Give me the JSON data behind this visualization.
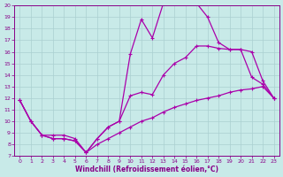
{
  "xlabel": "Windchill (Refroidissement éolien,°C)",
  "bg_color": "#c8eae8",
  "line_color": "#aa00aa",
  "ylim": [
    7,
    20
  ],
  "xlim": [
    -0.5,
    23.5
  ],
  "yticks": [
    7,
    8,
    9,
    10,
    11,
    12,
    13,
    14,
    15,
    16,
    17,
    18,
    19,
    20
  ],
  "xticks": [
    0,
    1,
    2,
    3,
    4,
    5,
    6,
    7,
    8,
    9,
    10,
    11,
    12,
    13,
    14,
    15,
    16,
    17,
    18,
    19,
    20,
    21,
    22,
    23
  ],
  "line1_x": [
    0,
    1,
    2,
    3,
    4,
    5,
    6,
    7,
    8,
    9,
    10,
    11,
    12,
    13,
    14,
    15,
    16,
    17,
    18,
    19,
    20,
    21,
    22,
    23
  ],
  "line1_y": [
    11.8,
    10.0,
    8.8,
    8.5,
    8.5,
    8.3,
    7.3,
    8.5,
    9.5,
    10.0,
    15.8,
    18.8,
    17.2,
    20.2,
    20.2,
    20.2,
    20.2,
    19.0,
    16.8,
    16.2,
    16.2,
    13.8,
    13.2,
    12.0
  ],
  "line2_x": [
    0,
    1,
    2,
    3,
    4,
    5,
    6,
    7,
    8,
    9,
    10,
    11,
    12,
    13,
    14,
    15,
    16,
    17,
    18,
    19,
    20,
    21,
    22,
    23
  ],
  "line2_y": [
    11.8,
    10.0,
    8.8,
    8.5,
    8.5,
    8.3,
    7.3,
    8.5,
    9.5,
    10.0,
    12.2,
    12.5,
    12.3,
    14.0,
    15.0,
    15.5,
    16.5,
    16.5,
    16.3,
    16.2,
    16.2,
    16.0,
    13.5,
    12.0
  ],
  "line3_x": [
    0,
    1,
    2,
    3,
    4,
    5,
    6,
    7,
    8,
    9,
    10,
    11,
    12,
    13,
    14,
    15,
    16,
    17,
    18,
    19,
    20,
    21,
    22,
    23
  ],
  "line3_y": [
    11.8,
    10.0,
    8.8,
    8.8,
    8.8,
    8.5,
    7.3,
    8.0,
    8.5,
    9.0,
    9.5,
    10.0,
    10.3,
    10.8,
    11.2,
    11.5,
    11.8,
    12.0,
    12.2,
    12.5,
    12.7,
    12.8,
    13.0,
    12.0
  ],
  "grid_color": "#aad0d0",
  "tick_color": "#880088",
  "label_fontsize": 4.5,
  "xlabel_fontsize": 5.5
}
